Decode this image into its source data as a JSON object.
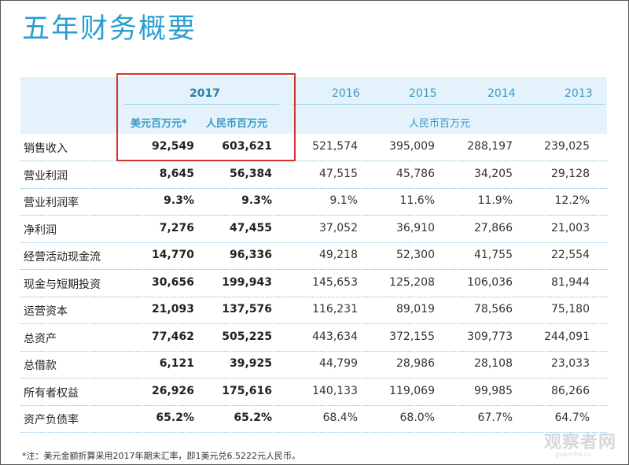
{
  "title": "五年财务概要",
  "header": {
    "years": [
      "2017",
      "2016",
      "2015",
      "2014",
      "2013"
    ],
    "sub_usd": "美元百万元*",
    "sub_rmb_2017": "人民币百万元",
    "sub_rmb_other": "人民币百万元"
  },
  "rows": [
    {
      "label": "销售收入",
      "values": [
        "92,549",
        "603,621",
        "521,574",
        "395,009",
        "288,197",
        "239,025"
      ]
    },
    {
      "label": "营业利润",
      "values": [
        "8,645",
        "56,384",
        "47,515",
        "45,786",
        "34,205",
        "29,128"
      ]
    },
    {
      "label": "营业利润率",
      "values": [
        "9.3%",
        "9.3%",
        "9.1%",
        "11.6%",
        "11.9%",
        "12.2%"
      ]
    },
    {
      "label": "净利润",
      "values": [
        "7,276",
        "47,455",
        "37,052",
        "36,910",
        "27,866",
        "21,003"
      ]
    },
    {
      "label": "经营活动现金流",
      "values": [
        "14,770",
        "96,336",
        "49,218",
        "52,300",
        "41,755",
        "22,554"
      ]
    },
    {
      "label": "现金与短期投资",
      "values": [
        "30,656",
        "199,943",
        "145,653",
        "125,208",
        "106,036",
        "81,944"
      ]
    },
    {
      "label": "运营资本",
      "values": [
        "21,093",
        "137,576",
        "116,231",
        "89,019",
        "78,566",
        "75,180"
      ]
    },
    {
      "label": "总资产",
      "values": [
        "77,462",
        "505,225",
        "443,634",
        "372,155",
        "309,773",
        "244,091"
      ]
    },
    {
      "label": "总借款",
      "values": [
        "6,121",
        "39,925",
        "44,799",
        "28,986",
        "28,108",
        "23,033"
      ]
    },
    {
      "label": "所有者权益",
      "values": [
        "26,926",
        "175,616",
        "140,133",
        "119,069",
        "99,985",
        "86,266"
      ]
    },
    {
      "label": "资产负债率",
      "values": [
        "65.2%",
        "65.2%",
        "68.4%",
        "68.0%",
        "67.7%",
        "64.7%"
      ]
    }
  ],
  "footnote": "*注：美元金额折算采用2017年期末汇率，即1美元兑6.5222元人民币。",
  "watermark": "观察者网",
  "watermark_url": "guancha.cn"
}
